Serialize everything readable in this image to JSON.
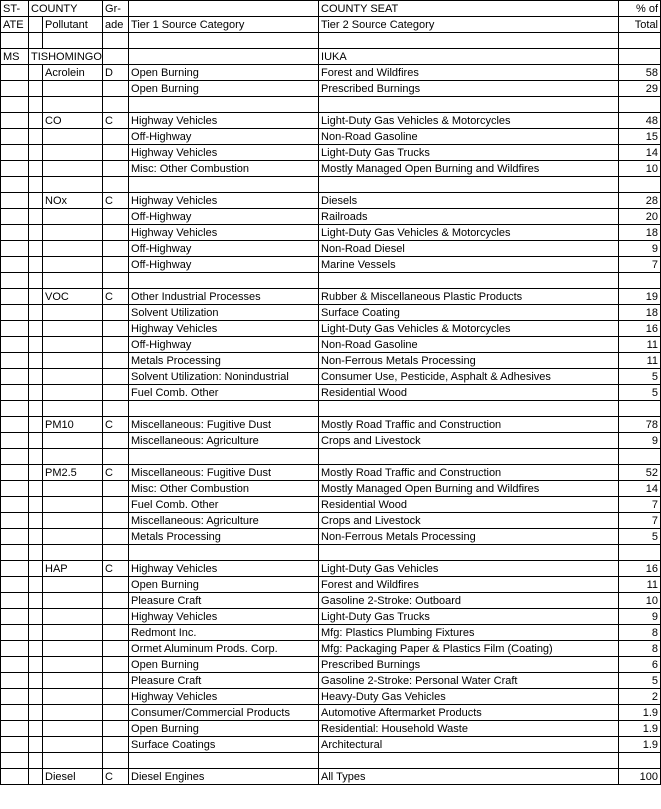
{
  "headers": {
    "h1c1": "ST-",
    "h1c2": "COUNTY",
    "h1c3": "Gr-",
    "h1c4": "",
    "h1c5": "COUNTY SEAT",
    "h1c6": "% of",
    "h2c1": "ATE",
    "h2c2": "",
    "h2c3": "Pollutant",
    "h2c4": "ade",
    "h2c5": "Tier 1 Source Category",
    "h2c6": "Tier 2 Source Category",
    "h2c7": "Total"
  },
  "county": {
    "state": "MS",
    "name": "TISHOMINGO",
    "seat": "IUKA"
  },
  "rows": [
    {
      "pollutant": "Acrolein",
      "grade": "D",
      "tier1": "Open Burning",
      "tier2": "Forest and Wildfires",
      "pct": "58"
    },
    {
      "pollutant": "",
      "grade": "",
      "tier1": "Open Burning",
      "tier2": "Prescribed Burnings",
      "pct": "29"
    },
    {
      "blank": true
    },
    {
      "pollutant": "CO",
      "grade": "C",
      "tier1": "Highway Vehicles",
      "tier2": "Light-Duty Gas Vehicles & Motorcycles",
      "pct": "48"
    },
    {
      "pollutant": "",
      "grade": "",
      "tier1": "Off-Highway",
      "tier2": "Non-Road Gasoline",
      "pct": "15"
    },
    {
      "pollutant": "",
      "grade": "",
      "tier1": "Highway Vehicles",
      "tier2": "Light-Duty Gas Trucks",
      "pct": "14"
    },
    {
      "pollutant": "",
      "grade": "",
      "tier1": "Misc: Other Combustion",
      "tier2": "Mostly Managed Open Burning and Wildfires",
      "pct": "10"
    },
    {
      "blank": true
    },
    {
      "pollutant": "NOx",
      "grade": "C",
      "tier1": "Highway Vehicles",
      "tier2": "Diesels",
      "pct": "28"
    },
    {
      "pollutant": "",
      "grade": "",
      "tier1": "Off-Highway",
      "tier2": "Railroads",
      "pct": "20"
    },
    {
      "pollutant": "",
      "grade": "",
      "tier1": "Highway Vehicles",
      "tier2": "Light-Duty Gas Vehicles & Motorcycles",
      "pct": "18"
    },
    {
      "pollutant": "",
      "grade": "",
      "tier1": "Off-Highway",
      "tier2": "Non-Road Diesel",
      "pct": "9"
    },
    {
      "pollutant": "",
      "grade": "",
      "tier1": "Off-Highway",
      "tier2": "Marine Vessels",
      "pct": "7"
    },
    {
      "blank": true
    },
    {
      "pollutant": "VOC",
      "grade": "C",
      "tier1": "Other Industrial Processes",
      "tier2": "Rubber & Miscellaneous Plastic Products",
      "pct": "19"
    },
    {
      "pollutant": "",
      "grade": "",
      "tier1": "Solvent Utilization",
      "tier2": "Surface Coating",
      "pct": "18"
    },
    {
      "pollutant": "",
      "grade": "",
      "tier1": "Highway Vehicles",
      "tier2": "Light-Duty Gas Vehicles & Motorcycles",
      "pct": "16"
    },
    {
      "pollutant": "",
      "grade": "",
      "tier1": "Off-Highway",
      "tier2": "Non-Road Gasoline",
      "pct": "11"
    },
    {
      "pollutant": "",
      "grade": "",
      "tier1": "Metals Processing",
      "tier2": "Non-Ferrous Metals Processing",
      "pct": "11"
    },
    {
      "pollutant": "",
      "grade": "",
      "tier1": "Solvent Utilization: Nonindustrial",
      "tier2": "Consumer Use, Pesticide, Asphalt & Adhesives",
      "pct": "5"
    },
    {
      "pollutant": "",
      "grade": "",
      "tier1": "Fuel Comb. Other",
      "tier2": "Residential Wood",
      "pct": "5"
    },
    {
      "blank": true
    },
    {
      "pollutant": "PM10",
      "grade": "C",
      "tier1": "Miscellaneous: Fugitive Dust",
      "tier2": "Mostly Road Traffic and Construction",
      "pct": "78"
    },
    {
      "pollutant": "",
      "grade": "",
      "tier1": "Miscellaneous: Agriculture",
      "tier2": "Crops and Livestock",
      "pct": "9"
    },
    {
      "blank": true
    },
    {
      "pollutant": "PM2.5",
      "grade": "C",
      "tier1": "Miscellaneous: Fugitive Dust",
      "tier2": "Mostly Road Traffic and Construction",
      "pct": "52"
    },
    {
      "pollutant": "",
      "grade": "",
      "tier1": "Misc: Other Combustion",
      "tier2": "Mostly Managed Open Burning and Wildfires",
      "pct": "14"
    },
    {
      "pollutant": "",
      "grade": "",
      "tier1": "Fuel Comb. Other",
      "tier2": "Residential Wood",
      "pct": "7"
    },
    {
      "pollutant": "",
      "grade": "",
      "tier1": "Miscellaneous: Agriculture",
      "tier2": "Crops and Livestock",
      "pct": "7"
    },
    {
      "pollutant": "",
      "grade": "",
      "tier1": "Metals Processing",
      "tier2": "Non-Ferrous Metals Processing",
      "pct": "5"
    },
    {
      "blank": true
    },
    {
      "pollutant": "HAP",
      "grade": "C",
      "tier1": "Highway Vehicles",
      "tier2": "Light-Duty Gas Vehicles",
      "pct": "16"
    },
    {
      "pollutant": "",
      "grade": "",
      "tier1": "Open Burning",
      "tier2": "Forest and Wildfires",
      "pct": "11"
    },
    {
      "pollutant": "",
      "grade": "",
      "tier1": "Pleasure Craft",
      "tier2": "Gasoline 2-Stroke: Outboard",
      "pct": "10"
    },
    {
      "pollutant": "",
      "grade": "",
      "tier1": "Highway Vehicles",
      "tier2": "Light-Duty Gas Trucks",
      "pct": "9"
    },
    {
      "pollutant": "",
      "grade": "",
      "tier1": "Redmont Inc.",
      "tier2": "Mfg: Plastics Plumbing Fixtures",
      "pct": "8"
    },
    {
      "pollutant": "",
      "grade": "",
      "tier1": "Ormet Aluminum Prods. Corp.",
      "tier2": "Mfg: Packaging Paper & Plastics Film (Coating)",
      "pct": "8"
    },
    {
      "pollutant": "",
      "grade": "",
      "tier1": "Open Burning",
      "tier2": "Prescribed Burnings",
      "pct": "6"
    },
    {
      "pollutant": "",
      "grade": "",
      "tier1": "Pleasure Craft",
      "tier2": "Gasoline 2-Stroke: Personal Water Craft",
      "pct": "5"
    },
    {
      "pollutant": "",
      "grade": "",
      "tier1": "Highway Vehicles",
      "tier2": "Heavy-Duty Gas Vehicles",
      "pct": "2"
    },
    {
      "pollutant": "",
      "grade": "",
      "tier1": "Consumer/Commercial Products",
      "tier2": "Automotive Aftermarket Products",
      "pct": "1.9"
    },
    {
      "pollutant": "",
      "grade": "",
      "tier1": "Open Burning",
      "tier2": "Residential: Household Waste",
      "pct": "1.9"
    },
    {
      "pollutant": "",
      "grade": "",
      "tier1": "Surface Coatings",
      "tier2": "Architectural",
      "pct": "1.9"
    },
    {
      "blank": true
    },
    {
      "pollutant": "Diesel",
      "grade": "C",
      "tier1": "Diesel Engines",
      "tier2": "All Types",
      "pct": "100"
    }
  ]
}
